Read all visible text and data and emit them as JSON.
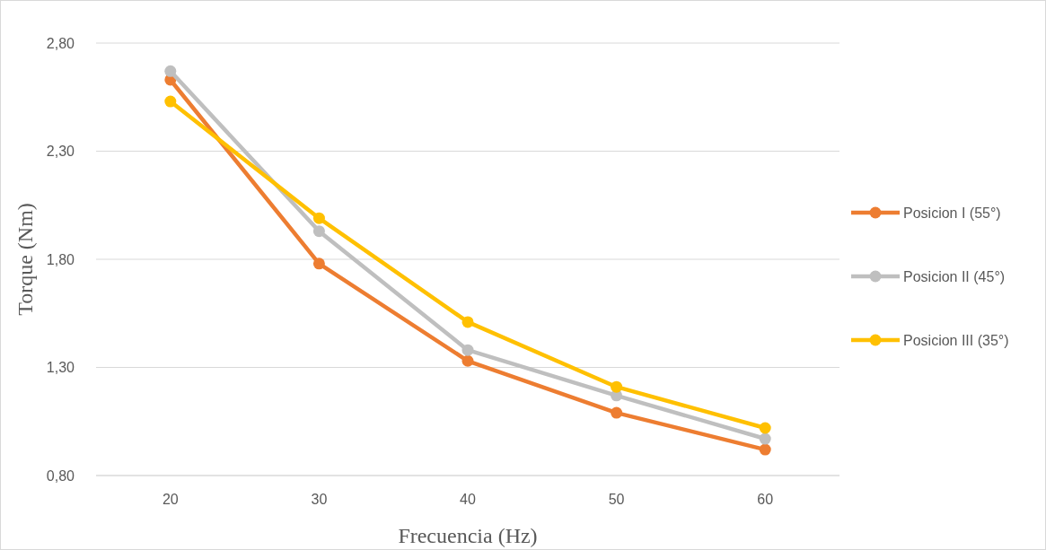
{
  "chart_data": {
    "type": "line",
    "xlabel": "Frecuencia (Hz)",
    "ylabel": "Torque (Nm)",
    "categories": [
      "20",
      "30",
      "40",
      "50",
      "60"
    ],
    "series": [
      {
        "name": "Posicion I (55°)",
        "color": "#ed7d31",
        "values": [
          2.63,
          1.78,
          1.33,
          1.09,
          0.92
        ]
      },
      {
        "name": "Posicion II (45°)",
        "color": "#bfbfbf",
        "values": [
          2.67,
          1.93,
          1.38,
          1.17,
          0.97
        ]
      },
      {
        "name": "Posicion III (35°)",
        "color": "#ffc000",
        "values": [
          2.53,
          1.99,
          1.51,
          1.21,
          1.02
        ]
      }
    ],
    "ylim": [
      0.8,
      2.8
    ],
    "yticks": [
      {
        "value": 0.8,
        "label": "0,80"
      },
      {
        "value": 1.3,
        "label": "1,30"
      },
      {
        "value": 1.8,
        "label": "1,80"
      },
      {
        "value": 2.3,
        "label": "2,30"
      },
      {
        "value": 2.8,
        "label": "2,80"
      }
    ],
    "grid": "y",
    "legend": "right",
    "marker": "circle",
    "line_style": "solid"
  }
}
